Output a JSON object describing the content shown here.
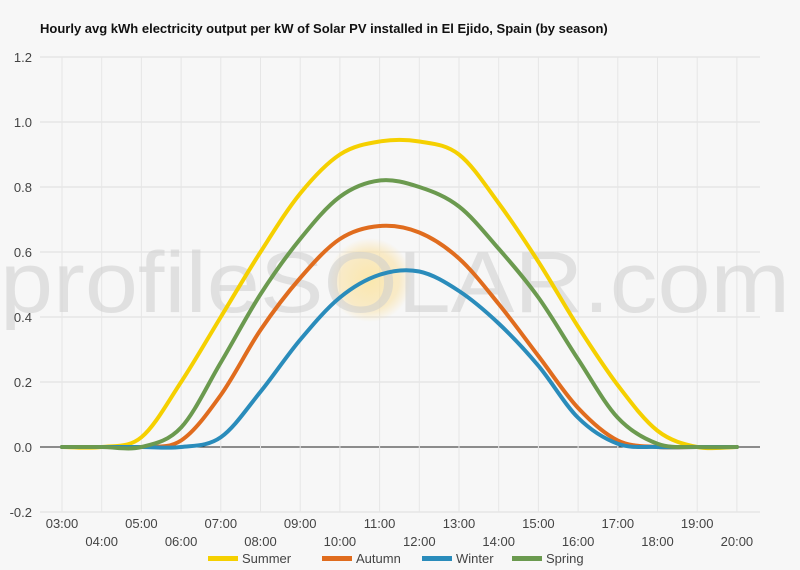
{
  "chart_data": {
    "type": "line",
    "title": "Hourly avg kWh electricity output per kW of Solar PV installed in El Ejido, Spain (by season)",
    "xlabel": "",
    "ylabel": "",
    "ylim": [
      -0.2,
      1.2
    ],
    "yticks": [
      "-0.2",
      "0.0",
      "0.2",
      "0.4",
      "0.6",
      "0.8",
      "1.0",
      "1.2"
    ],
    "x": [
      "03:00",
      "04:00",
      "05:00",
      "06:00",
      "07:00",
      "08:00",
      "09:00",
      "10:00",
      "11:00",
      "12:00",
      "13:00",
      "14:00",
      "15:00",
      "16:00",
      "17:00",
      "18:00",
      "19:00",
      "20:00"
    ],
    "grid": true,
    "legend_position": "bottom",
    "series": [
      {
        "name": "Summer",
        "color": "#f5d000",
        "values": [
          0,
          0,
          0.03,
          0.2,
          0.4,
          0.6,
          0.78,
          0.9,
          0.94,
          0.94,
          0.9,
          0.75,
          0.57,
          0.37,
          0.19,
          0.05,
          0,
          0
        ]
      },
      {
        "name": "Autumn",
        "color": "#e06c1e",
        "values": [
          0,
          0,
          0,
          0.02,
          0.16,
          0.36,
          0.52,
          0.64,
          0.68,
          0.66,
          0.58,
          0.44,
          0.28,
          0.12,
          0.02,
          0,
          0,
          0
        ]
      },
      {
        "name": "Winter",
        "color": "#2a8cbb",
        "values": [
          0,
          0,
          0,
          0,
          0.03,
          0.17,
          0.33,
          0.46,
          0.53,
          0.54,
          0.48,
          0.38,
          0.25,
          0.09,
          0.01,
          0,
          0,
          0
        ]
      },
      {
        "name": "Spring",
        "color": "#6b9a4f",
        "values": [
          0,
          0,
          0,
          0.06,
          0.26,
          0.47,
          0.64,
          0.77,
          0.82,
          0.8,
          0.74,
          0.61,
          0.46,
          0.27,
          0.09,
          0.01,
          0,
          0
        ]
      }
    ],
    "watermark": "profileSOLAR.com"
  }
}
